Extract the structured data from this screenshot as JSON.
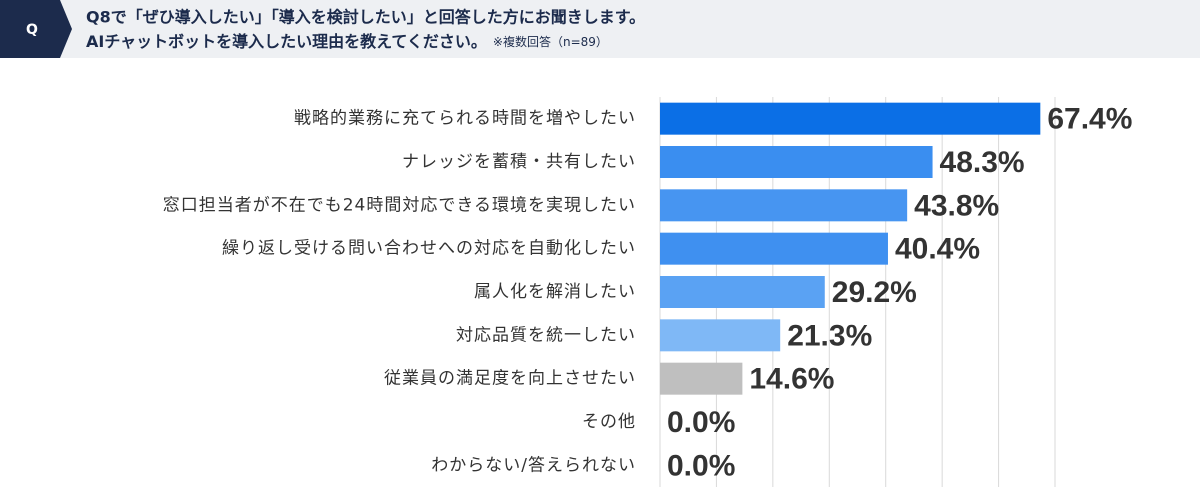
{
  "header": {
    "badge": "Q",
    "line1": "Q8で「ぜひ導入したい」「導入を検討したい」と回答した方にお聞きします。",
    "line2": "AIチャットボットを導入したい理由を教えてください。",
    "note": "※複数回答（n=89）"
  },
  "chart_data": {
    "type": "bar",
    "orientation": "horizontal",
    "categories": [
      "戦略的業務に充てられる時間を増やしたい",
      "ナレッジを蓄積・共有したい",
      "窓口担当者が不在でも24時間対応できる環境を実現したい",
      "繰り返し受ける問い合わせへの対応を自動化したい",
      "属人化を解消したい",
      "対応品質を統一したい",
      "従業員の満足度を向上させたい",
      "その他",
      "わからない/答えられない"
    ],
    "values": [
      67.4,
      48.3,
      43.8,
      40.4,
      29.2,
      21.3,
      14.6,
      0.0,
      0.0
    ],
    "value_labels": [
      "67.4%",
      "48.3%",
      "43.8%",
      "40.4%",
      "29.2%",
      "21.3%",
      "14.6%",
      "0.0%",
      "0.0%"
    ],
    "colors": [
      "#0b6fe6",
      "#3a8ef0",
      "#4795f1",
      "#3f90f0",
      "#5aa2f3",
      "#7fb8f6",
      "#bfbfbf",
      "#bfbfbf",
      "#bfbfbf"
    ],
    "xlim": [
      0,
      70
    ],
    "xticks": [
      0,
      10,
      20,
      30,
      40,
      50,
      60,
      70
    ],
    "grid": true
  }
}
